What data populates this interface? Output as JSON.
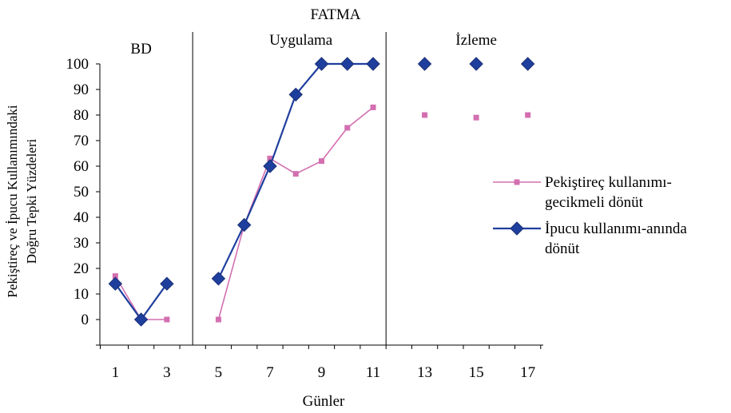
{
  "chart_data": {
    "type": "line",
    "title": "FATMA",
    "xlabel": "Günler",
    "ylabel_lines": [
      "Pekiştireç ve İpucu Kullanımındaki",
      "Doğru Tepki Yüzdeleri"
    ],
    "xlim": [
      0.4,
      17.6
    ],
    "ylim": [
      -10,
      100
    ],
    "yticks": [
      0,
      10,
      20,
      30,
      40,
      50,
      60,
      70,
      80,
      90,
      100
    ],
    "xtick_labels": [
      1,
      3,
      5,
      7,
      9,
      11,
      13,
      15,
      17
    ],
    "phases": [
      {
        "label": "BD",
        "x_center": 2.0
      },
      {
        "label": "Uygulama",
        "x_center": 8.2
      },
      {
        "label": "İzleme",
        "x_center": 15.0
      }
    ],
    "phase_lines": [
      4.0,
      11.5
    ],
    "legend_position": "right",
    "series": [
      {
        "name_lines": [
          "Pekiştireç kullanımı-",
          "gecikmeli dönüt"
        ],
        "color": "#d36fb0",
        "marker": "square",
        "segments": [
          [
            [
              1,
              17
            ],
            [
              2,
              0
            ],
            [
              3,
              0
            ]
          ],
          [
            [
              5,
              0
            ],
            [
              6,
              37
            ],
            [
              7,
              63
            ],
            [
              8,
              57
            ],
            [
              9,
              62
            ],
            [
              10,
              75
            ],
            [
              11,
              83
            ]
          ],
          [
            [
              13,
              80
            ]
          ],
          [
            [
              15,
              79
            ]
          ],
          [
            [
              17,
              80
            ]
          ]
        ]
      },
      {
        "name_lines": [
          "İpucu kullanımı-anında",
          "dönüt"
        ],
        "color": "#1f3f9e",
        "marker": "diamond",
        "segments": [
          [
            [
              1,
              14
            ],
            [
              2,
              0
            ],
            [
              3,
              14
            ]
          ],
          [
            [
              5,
              16
            ],
            [
              6,
              37
            ],
            [
              7,
              60
            ],
            [
              8,
              88
            ],
            [
              9,
              100
            ],
            [
              10,
              100
            ],
            [
              11,
              100
            ]
          ],
          [
            [
              13,
              100
            ]
          ],
          [
            [
              15,
              100
            ]
          ],
          [
            [
              17,
              100
            ]
          ]
        ]
      }
    ]
  }
}
